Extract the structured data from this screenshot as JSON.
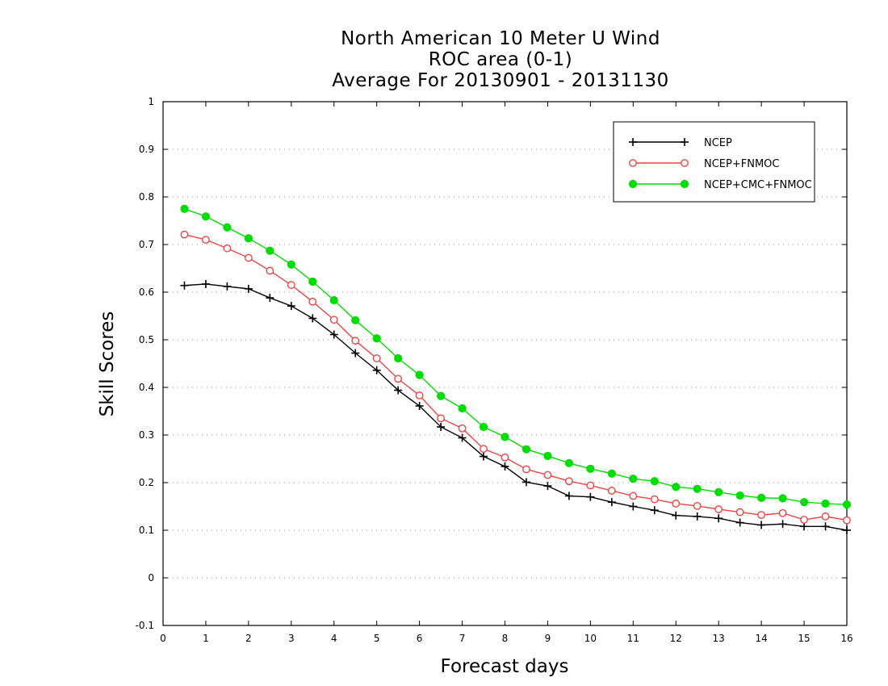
{
  "chart_data": {
    "type": "line",
    "title_lines": [
      "North American 10 Meter U Wind",
      "ROC area (0-1)",
      "Average For 20130901 - 20131130"
    ],
    "xlabel": "Forecast days",
    "ylabel": "Skill Scores",
    "xlim": [
      0,
      16
    ],
    "ylim": [
      -0.1,
      1
    ],
    "x_ticks": [
      0,
      1,
      2,
      3,
      4,
      5,
      6,
      7,
      8,
      9,
      10,
      11,
      12,
      13,
      14,
      15,
      16
    ],
    "x_tick_labels": [
      "0",
      "1",
      "2",
      "3",
      "4",
      "5",
      "6",
      "7",
      "8",
      "9",
      "10",
      "11",
      "12",
      "13",
      "14",
      "15",
      "16"
    ],
    "y_ticks": [
      -0.1,
      0,
      0.1,
      0.2,
      0.3,
      0.4,
      0.5,
      0.6,
      0.7,
      0.8,
      0.9,
      1
    ],
    "y_tick_labels": [
      "-0.1",
      "0",
      "0.1",
      "0.2",
      "0.3",
      "0.4",
      "0.5",
      "0.6",
      "0.7",
      "0.8",
      "0.9",
      "1"
    ],
    "grid": "horizontal dotted",
    "legend_position": "top-right",
    "x": [
      0.5,
      1.0,
      1.5,
      2.0,
      2.5,
      3.0,
      3.5,
      4.0,
      4.5,
      5.0,
      5.5,
      6.0,
      6.5,
      7.0,
      7.5,
      8.0,
      8.5,
      9.0,
      9.5,
      10.0,
      10.5,
      11.0,
      11.5,
      12.0,
      12.5,
      13.0,
      13.5,
      14.0,
      14.5,
      15.0,
      15.5,
      16.0
    ],
    "series": [
      {
        "name": "NCEP",
        "color": "#000000",
        "marker": "plus",
        "values": [
          0.614,
          0.617,
          0.612,
          0.607,
          0.588,
          0.571,
          0.545,
          0.511,
          0.472,
          0.436,
          0.394,
          0.361,
          0.317,
          0.294,
          0.255,
          0.234,
          0.201,
          0.193,
          0.172,
          0.17,
          0.159,
          0.15,
          0.142,
          0.131,
          0.129,
          0.125,
          0.116,
          0.111,
          0.113,
          0.108,
          0.108,
          0.1
        ]
      },
      {
        "name": "NCEP+FNMOC",
        "color": "#ee4444",
        "marker": "open-circle",
        "values": [
          0.721,
          0.71,
          0.692,
          0.672,
          0.645,
          0.615,
          0.58,
          0.542,
          0.498,
          0.461,
          0.418,
          0.383,
          0.335,
          0.314,
          0.271,
          0.253,
          0.228,
          0.216,
          0.203,
          0.194,
          0.183,
          0.172,
          0.165,
          0.156,
          0.151,
          0.144,
          0.138,
          0.132,
          0.136,
          0.122,
          0.129,
          0.121
        ]
      },
      {
        "name": "NCEP+CMC+FNMOC",
        "color": "#00dd00",
        "marker": "filled-circle",
        "values": [
          0.775,
          0.759,
          0.736,
          0.713,
          0.687,
          0.658,
          0.622,
          0.583,
          0.541,
          0.503,
          0.461,
          0.426,
          0.382,
          0.356,
          0.317,
          0.296,
          0.27,
          0.256,
          0.241,
          0.229,
          0.219,
          0.208,
          0.203,
          0.191,
          0.187,
          0.18,
          0.173,
          0.168,
          0.167,
          0.159,
          0.156,
          0.154
        ]
      }
    ]
  }
}
